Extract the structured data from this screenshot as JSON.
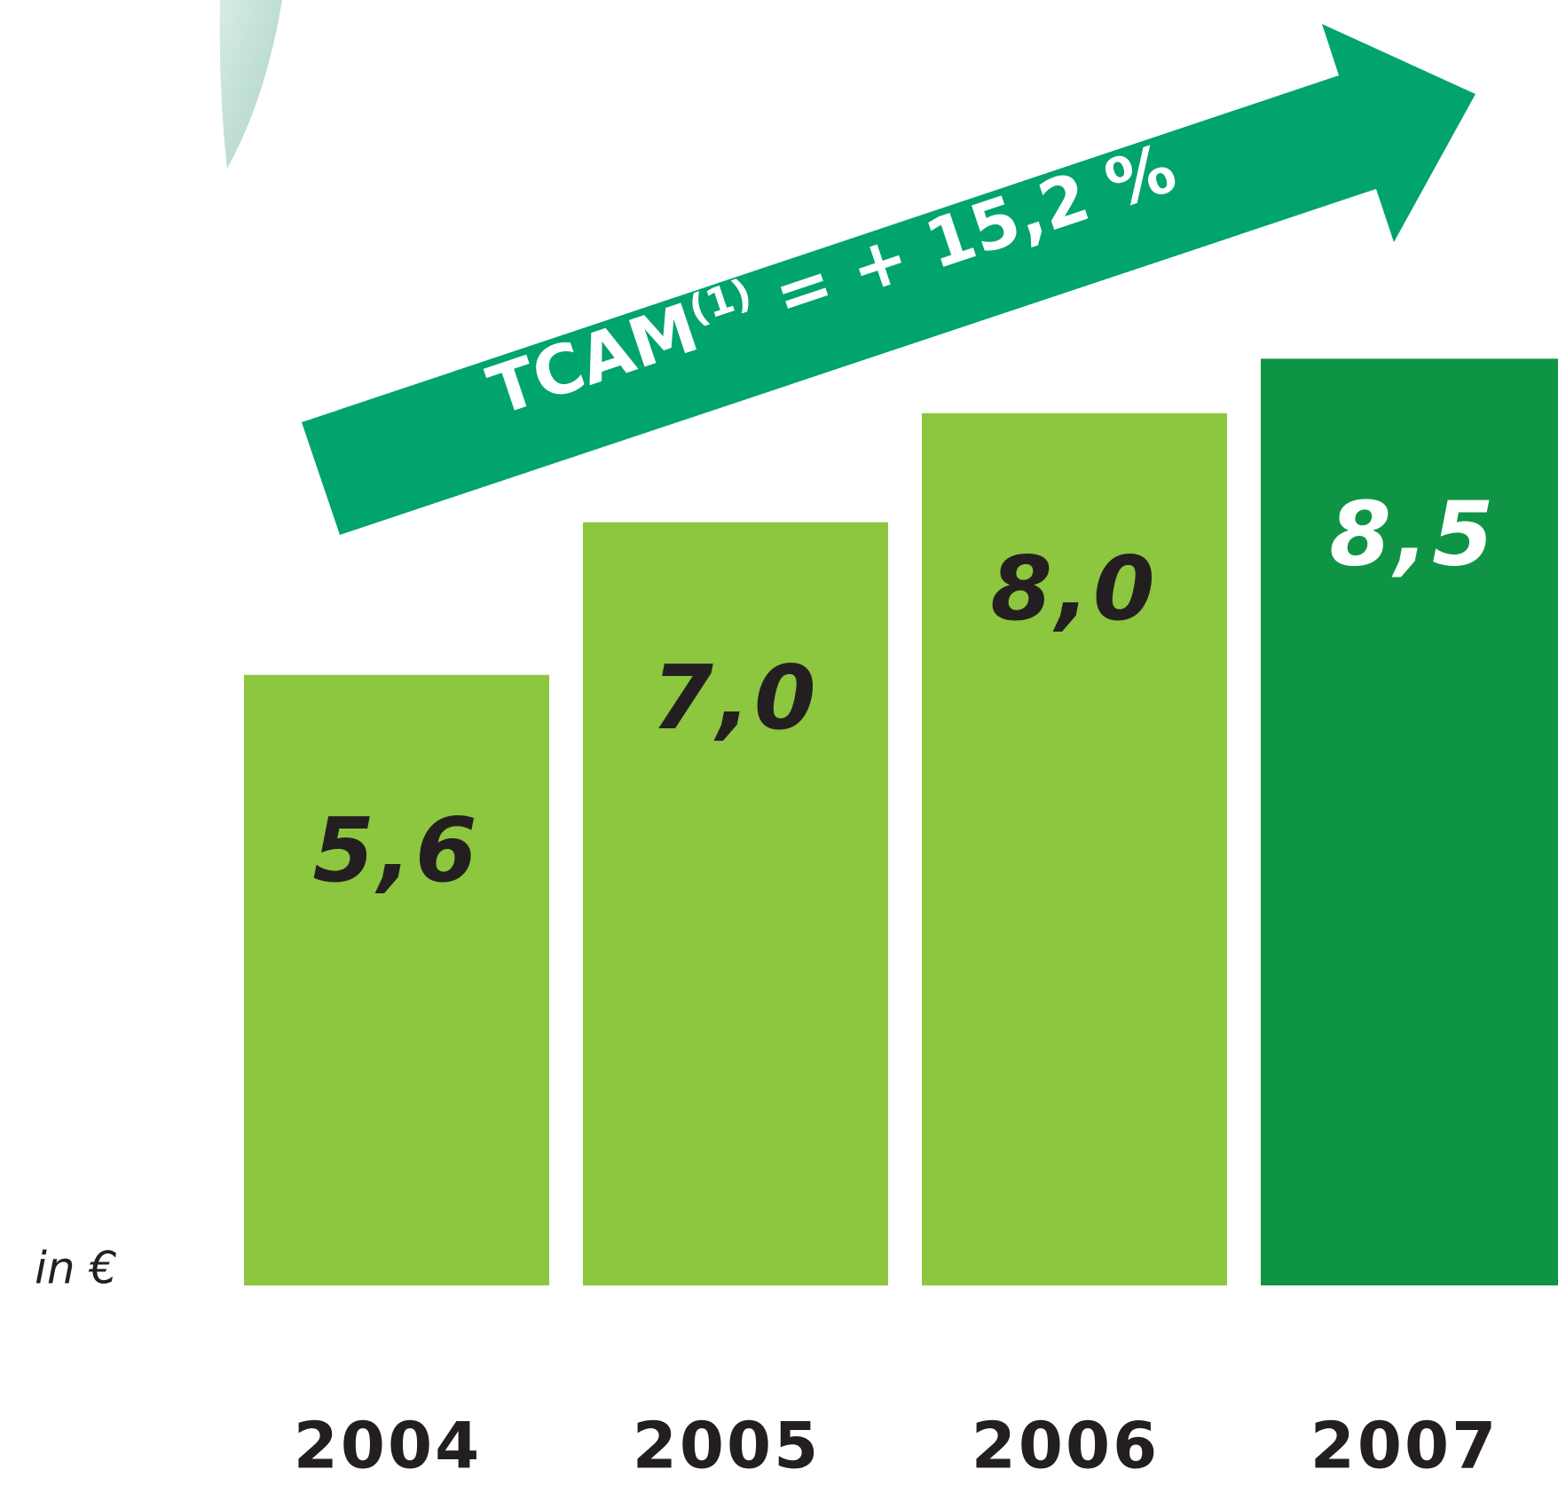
{
  "chart_data": {
    "type": "bar",
    "categories": [
      "2004",
      "2005",
      "2006",
      "2007"
    ],
    "values": [
      5.6,
      7.0,
      8.0,
      8.5
    ],
    "value_labels": [
      "5,6",
      "7,0",
      "8,0",
      "8,5"
    ],
    "colors": [
      "#8dc63f",
      "#8dc63f",
      "#8dc63f",
      "#0f9445"
    ],
    "label_colors": [
      "#231f20",
      "#231f20",
      "#231f20",
      "#ffffff"
    ],
    "ylim": [
      0,
      10
    ],
    "unit_label": "in €",
    "annotation": {
      "text": "TCAM",
      "superscript": "(1)",
      "rest": " = + 15,2 %",
      "color": "#00a46c"
    }
  }
}
